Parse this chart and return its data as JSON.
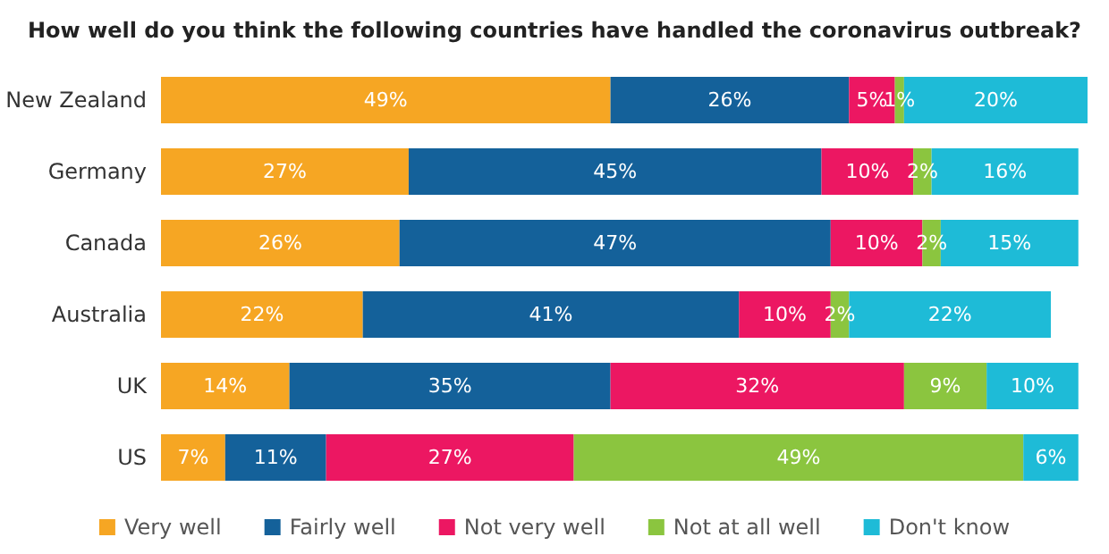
{
  "chart_data": {
    "type": "bar",
    "orientation": "horizontal",
    "stacked": true,
    "title": "How well do you think the following countries have handled the coronavirus outbreak?",
    "categories": [
      "New Zealand",
      "Germany",
      "Canada",
      "Australia",
      "UK",
      "US"
    ],
    "series": [
      {
        "name": "Very well",
        "color": "#f6a623",
        "values": [
          49,
          27,
          26,
          22,
          14,
          7
        ],
        "value_labels": [
          "49%",
          "27%",
          "26%",
          "22%",
          "14%",
          "7%"
        ]
      },
      {
        "name": "Fairly well",
        "color": "#14619a",
        "values": [
          26,
          45,
          47,
          41,
          35,
          11
        ],
        "value_labels": [
          "26%",
          "45%",
          "47%",
          "41%",
          "35%",
          "11%"
        ]
      },
      {
        "name": "Not very well",
        "color": "#ec1762",
        "values": [
          5,
          10,
          10,
          10,
          32,
          27
        ],
        "value_labels": [
          "5%",
          "10%",
          "10%",
          "10%",
          "32%",
          "27%"
        ]
      },
      {
        "name": "Not at all well",
        "color": "#8bc53f",
        "values": [
          1,
          2,
          2,
          2,
          9,
          49
        ],
        "value_labels": [
          "1%",
          "2%",
          "2%",
          "2%",
          "9%",
          "49%"
        ]
      },
      {
        "name": "Don't know",
        "color": "#1ebbd7",
        "values": [
          20,
          16,
          15,
          22,
          10,
          6
        ],
        "value_labels": [
          "20%",
          "16%",
          "15%",
          "22%",
          "10%",
          "6%"
        ]
      }
    ],
    "tick_labels": "y",
    "legend": "bottom",
    "grid": false
  }
}
